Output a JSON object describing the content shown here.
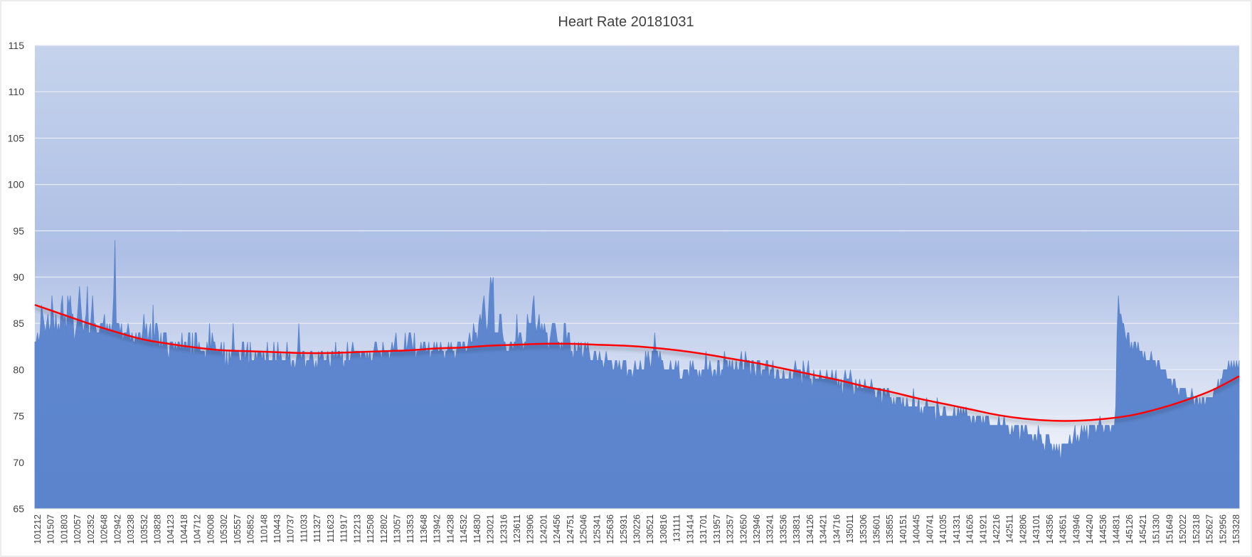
{
  "chart_data": {
    "type": "area",
    "title": "Heart Rate 20181031",
    "xlabel": "",
    "ylabel": "",
    "ylim": [
      65,
      115
    ],
    "y_ticks": [
      65,
      70,
      75,
      80,
      85,
      90,
      95,
      100,
      105,
      110,
      115
    ],
    "grid": true,
    "legend": "none",
    "colors": {
      "series_fill": "#5b84cd",
      "series_line": "#5b84cd",
      "trendline": "#ff0000",
      "plot_bg_top": "#c5d3ec",
      "plot_bg_bottom": "#ffffff",
      "gridline": "#e6ebf5",
      "text": "#404040"
    },
    "x_tick_labels": [
      "101212",
      "101507",
      "101803",
      "102057",
      "102352",
      "102648",
      "102942",
      "103238",
      "103532",
      "103828",
      "104123",
      "104418",
      "104712",
      "105008",
      "105302",
      "105557",
      "105852",
      "110148",
      "110443",
      "110737",
      "111033",
      "111327",
      "111623",
      "111917",
      "112213",
      "112508",
      "112802",
      "113057",
      "113353",
      "113648",
      "113942",
      "114238",
      "114532",
      "114830",
      "123021",
      "123316",
      "123611",
      "123906",
      "124201",
      "124456",
      "124751",
      "125046",
      "125341",
      "125636",
      "125931",
      "130226",
      "130521",
      "130816",
      "131111",
      "131414",
      "131701",
      "131957",
      "132357",
      "132650",
      "132946",
      "133241",
      "133536",
      "133831",
      "134126",
      "134421",
      "134716",
      "135011",
      "135306",
      "135601",
      "135855",
      "140151",
      "140445",
      "140741",
      "141035",
      "141331",
      "141626",
      "141921",
      "142216",
      "142511",
      "142806",
      "143101",
      "143356",
      "143651",
      "143946",
      "144240",
      "144536",
      "144831",
      "145126",
      "145421",
      "151330",
      "151649",
      "152022",
      "152318",
      "152627",
      "152956",
      "153328"
    ],
    "series": [
      {
        "values": [
          83,
          83,
          84,
          83,
          84,
          87,
          86,
          85,
          84,
          85,
          86,
          84,
          85,
          88,
          86,
          84,
          86,
          84,
          85,
          84,
          87,
          88,
          85,
          86,
          84,
          88,
          87,
          88,
          86,
          86,
          83,
          84,
          85,
          87,
          89,
          87,
          85,
          84,
          85,
          86,
          89,
          84,
          84,
          86,
          88,
          85,
          85,
          84,
          84,
          84,
          85,
          85,
          85,
          86,
          84,
          85,
          84,
          85,
          84,
          85,
          88,
          94,
          85,
          85,
          85,
          84,
          85,
          83,
          84,
          84,
          84,
          85,
          84,
          83,
          84,
          83,
          83,
          84,
          83,
          84,
          84,
          83,
          84,
          86,
          84,
          85,
          83,
          84,
          85,
          82,
          87,
          83,
          85,
          85,
          84,
          82,
          84,
          82,
          84,
          84,
          84,
          82,
          81,
          83,
          83,
          83,
          82,
          83,
          82,
          83,
          83,
          82,
          84,
          82,
          83,
          83,
          82,
          84,
          84,
          81,
          84,
          81,
          84,
          84,
          82,
          83,
          82,
          82,
          82,
          82,
          81,
          83,
          82,
          85,
          82,
          84,
          83,
          83,
          82,
          82,
          82,
          82,
          83,
          81,
          83,
          80,
          82,
          80,
          82,
          81,
          82,
          85,
          82,
          82,
          82,
          82,
          81,
          81,
          83,
          83,
          81,
          82,
          83,
          80,
          83,
          81,
          81,
          81,
          82,
          81,
          82,
          82,
          82,
          81,
          82,
          81,
          81,
          83,
          81,
          81,
          81,
          81,
          83,
          81,
          81,
          83,
          81,
          82,
          81,
          81,
          81,
          81,
          83,
          81,
          82,
          80,
          81,
          81,
          80,
          81,
          82,
          85,
          82,
          81,
          82,
          82,
          80,
          81,
          81,
          81,
          82,
          82,
          81,
          80,
          81,
          80,
          82,
          81,
          82,
          82,
          81,
          81,
          81,
          82,
          81,
          80,
          82,
          82,
          81,
          83,
          81,
          82,
          82,
          81,
          82,
          80,
          81,
          81,
          83,
          81,
          81,
          82,
          83,
          82,
          82,
          82,
          82,
          82,
          81,
          82,
          82,
          82,
          81,
          82,
          81,
          82,
          81,
          81,
          82,
          83,
          83,
          82,
          82,
          82,
          81,
          83,
          82,
          82,
          82,
          82,
          81,
          82,
          83,
          82,
          83,
          84,
          82,
          82,
          82,
          82,
          82,
          82,
          84,
          82,
          83,
          84,
          84,
          83,
          82,
          84,
          81,
          82,
          82,
          82,
          83,
          82,
          83,
          83,
          82,
          82,
          83,
          81,
          82,
          82,
          83,
          82,
          83,
          82,
          82,
          83,
          82,
          82,
          81,
          82,
          82,
          83,
          82,
          83,
          82,
          82,
          81,
          82,
          83,
          83,
          83,
          82,
          83,
          83,
          82,
          82,
          83,
          84,
          83,
          83,
          85,
          84,
          84,
          83,
          85,
          86,
          85,
          87,
          88,
          86,
          84,
          85,
          88,
          90,
          89,
          90,
          84,
          84,
          84,
          84,
          86,
          86,
          84,
          83,
          83,
          82,
          82,
          82,
          83,
          83,
          82,
          83,
          83,
          86,
          83,
          84,
          84,
          83,
          82,
          83,
          83,
          86,
          85,
          85,
          85,
          87,
          88,
          85,
          84,
          85,
          86,
          84,
          85,
          84,
          85,
          84,
          84,
          82,
          83,
          84,
          85,
          85,
          85,
          84,
          83,
          83,
          82,
          83,
          82,
          85,
          85,
          83,
          84,
          84,
          82,
          82,
          81,
          83,
          82,
          82,
          83,
          82,
          83,
          81,
          82,
          83,
          82,
          83,
          82,
          81,
          81,
          81,
          82,
          82,
          81,
          81,
          82,
          81,
          81,
          80,
          81,
          82,
          81,
          81,
          81,
          81,
          80,
          80,
          81,
          81,
          80,
          81,
          80,
          80,
          81,
          81,
          81,
          79,
          80,
          80,
          80,
          79,
          80,
          81,
          80,
          80,
          80,
          81,
          80,
          80,
          80,
          82,
          81,
          82,
          81,
          80,
          82,
          82,
          84,
          82,
          82,
          81,
          82,
          81,
          81,
          80,
          80,
          80,
          80,
          80,
          81,
          80,
          80,
          80,
          81,
          80,
          81,
          79,
          79,
          79,
          80,
          80,
          80,
          80,
          79,
          81,
          80,
          81,
          80,
          80,
          80,
          79,
          80,
          79,
          80,
          80,
          80,
          82,
          80,
          80,
          81,
          80,
          79,
          80,
          80,
          79,
          81,
          81,
          79,
          80,
          80,
          82,
          81,
          81,
          80,
          81,
          80,
          81,
          80,
          80,
          81,
          80,
          80,
          81,
          82,
          80,
          80,
          82,
          81,
          81,
          81,
          79,
          81,
          81,
          80,
          79,
          81,
          81,
          81,
          79,
          80,
          80,
          80,
          81,
          81,
          79,
          80,
          80,
          81,
          79,
          79,
          80,
          80,
          79,
          79,
          79,
          80,
          79,
          79,
          79,
          79,
          80,
          79,
          79,
          80,
          81,
          80,
          80,
          80,
          80,
          78,
          81,
          80,
          79,
          80,
          81,
          79,
          79,
          78,
          80,
          79,
          79,
          79,
          79,
          80,
          79,
          79,
          79,
          79,
          80,
          79,
          79,
          79,
          80,
          79,
          79,
          80,
          78,
          79,
          78,
          79,
          77,
          79,
          80,
          79,
          79,
          79,
          80,
          79,
          78,
          77,
          79,
          78,
          78,
          79,
          78,
          78,
          78,
          79,
          78,
          78,
          78,
          78,
          79,
          78,
          78,
          77,
          77,
          78,
          78,
          78,
          76,
          78,
          78,
          77,
          78,
          78,
          77,
          77,
          76,
          77,
          76,
          77,
          77,
          77,
          77,
          76,
          77,
          76,
          76,
          77,
          76,
          76,
          76,
          76,
          78,
          76,
          76,
          76,
          77,
          75,
          76,
          75,
          76,
          76,
          77,
          76,
          76,
          76,
          76,
          76,
          76,
          74,
          77,
          76,
          75,
          75,
          75,
          76,
          76,
          75,
          75,
          75,
          75,
          75,
          75,
          76,
          75,
          75,
          76,
          75,
          76,
          75,
          76,
          75,
          76,
          75,
          75,
          75,
          74,
          75,
          75,
          74,
          75,
          75,
          75,
          75,
          74,
          75,
          74,
          75,
          75,
          75,
          74,
          74,
          74,
          74,
          74,
          74,
          74,
          75,
          74,
          74,
          74,
          75,
          74,
          74,
          74,
          73,
          73,
          74,
          73,
          74,
          74,
          74,
          74,
          72,
          74,
          74,
          73,
          74,
          74,
          73,
          73,
          73,
          73,
          72,
          73,
          73,
          72,
          74,
          73,
          73,
          72,
          72,
          71,
          73,
          73,
          73,
          72,
          72,
          71,
          72,
          71,
          72,
          71,
          72,
          70,
          72,
          72,
          72,
          72,
          72,
          72,
          73,
          72,
          72,
          73,
          74,
          72,
          73,
          72,
          73,
          74,
          73,
          74,
          73,
          74,
          72,
          74,
          74,
          74,
          74,
          74,
          73,
          74,
          74,
          75,
          74,
          74,
          73,
          74,
          74,
          74,
          74,
          73,
          74,
          74,
          74,
          76,
          84,
          88,
          86,
          86,
          85,
          85,
          84,
          83,
          84,
          84,
          82,
          83,
          82,
          83,
          83,
          82,
          83,
          82,
          82,
          82,
          81,
          82,
          81,
          81,
          81,
          81,
          82,
          81,
          81,
          81,
          80,
          81,
          81,
          80,
          80,
          80,
          80,
          80,
          79,
          79,
          79,
          79,
          78,
          79,
          79,
          78,
          78,
          77,
          78,
          78,
          78,
          78,
          78,
          77,
          77,
          77,
          77,
          78,
          77,
          76,
          77,
          77,
          76,
          77,
          76,
          77,
          77,
          76,
          77,
          77,
          77,
          77,
          77,
          77,
          78,
          78,
          78,
          79,
          78,
          79,
          79,
          80,
          80,
          80,
          80,
          81,
          80,
          81,
          80,
          81,
          80,
          81,
          80,
          81
        ]
      }
    ],
    "trendline": {
      "type": "polynomial",
      "values": [
        87.0,
        86.0,
        85.0,
        84.1,
        83.3,
        82.8,
        82.4,
        82.1,
        82.0,
        81.9,
        81.8,
        81.8,
        81.9,
        82.0,
        82.1,
        82.3,
        82.4,
        82.6,
        82.7,
        82.8,
        82.8,
        82.7,
        82.6,
        82.4,
        82.1,
        81.7,
        81.2,
        80.7,
        80.1,
        79.5,
        78.9,
        78.2,
        77.6,
        76.9,
        76.3,
        75.7,
        75.1,
        74.7,
        74.5,
        74.5,
        74.7,
        75.1,
        75.8,
        76.7,
        77.8,
        79.3
      ]
    }
  }
}
